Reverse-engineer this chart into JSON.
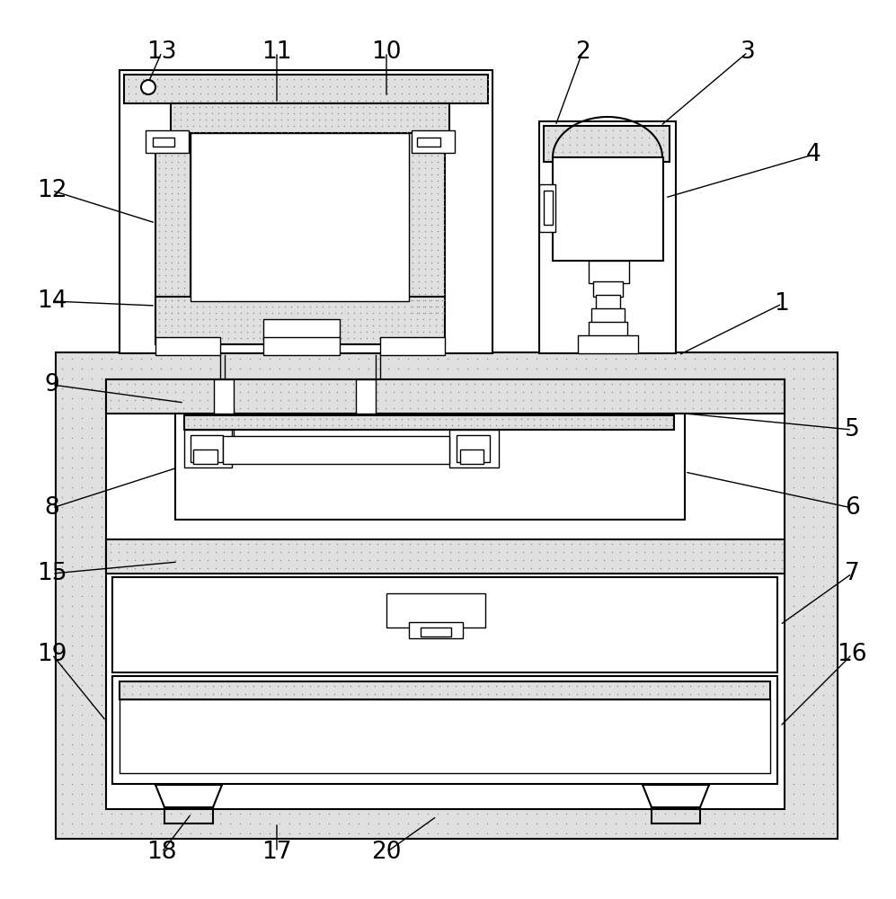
{
  "bg_color": "#ffffff",
  "lc": "#000000",
  "dot_color": "#c8c8c8",
  "label_fontsize": 19,
  "label_color": "#000000",
  "lw": 1.5,
  "lt": 1.0,
  "annotations": [
    [
      "1",
      870,
      338,
      755,
      395
    ],
    [
      "2",
      648,
      58,
      618,
      140
    ],
    [
      "3",
      832,
      58,
      735,
      140
    ],
    [
      "4",
      905,
      172,
      740,
      220
    ],
    [
      "5",
      948,
      478,
      762,
      460
    ],
    [
      "6",
      948,
      565,
      762,
      525
    ],
    [
      "7",
      948,
      638,
      868,
      695
    ],
    [
      "8",
      58,
      565,
      198,
      520
    ],
    [
      "9",
      58,
      428,
      205,
      448
    ],
    [
      "10",
      430,
      58,
      430,
      108
    ],
    [
      "11",
      308,
      58,
      308,
      115
    ],
    [
      "12",
      58,
      212,
      173,
      248
    ],
    [
      "13",
      180,
      58,
      165,
      92
    ],
    [
      "14",
      58,
      335,
      173,
      340
    ],
    [
      "15",
      58,
      638,
      198,
      625
    ],
    [
      "16",
      948,
      728,
      868,
      808
    ],
    [
      "17",
      308,
      948,
      308,
      915
    ],
    [
      "18",
      180,
      948,
      213,
      905
    ],
    [
      "19",
      58,
      728,
      118,
      802
    ],
    [
      "20",
      430,
      948,
      486,
      908
    ]
  ]
}
